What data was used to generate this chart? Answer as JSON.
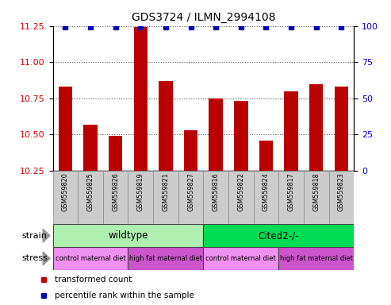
{
  "title": "GDS3724 / ILMN_2994108",
  "samples": [
    "GSM559820",
    "GSM559825",
    "GSM559826",
    "GSM559819",
    "GSM559821",
    "GSM559827",
    "GSM559816",
    "GSM559822",
    "GSM559824",
    "GSM559817",
    "GSM559818",
    "GSM559823"
  ],
  "bar_values": [
    10.83,
    10.57,
    10.49,
    11.24,
    10.87,
    10.53,
    10.75,
    10.73,
    10.46,
    10.8,
    10.85,
    10.83
  ],
  "percentile_values": [
    99,
    99,
    99,
    99,
    99,
    99,
    99,
    99,
    99,
    99,
    99,
    99
  ],
  "ylim_left": [
    10.25,
    11.25
  ],
  "ylim_right": [
    0,
    100
  ],
  "yticks_left": [
    10.25,
    10.5,
    10.75,
    11.0,
    11.25
  ],
  "yticks_right": [
    0,
    25,
    50,
    75,
    100
  ],
  "bar_color": "#bb0000",
  "dot_color": "#0000bb",
  "bar_bottom": 10.25,
  "strain_groups": [
    {
      "label": "wildtype",
      "start": 0,
      "end": 6,
      "color": "#b0f0b0"
    },
    {
      "label": "Cited2-/-",
      "start": 6,
      "end": 12,
      "color": "#00dd55"
    }
  ],
  "stress_groups": [
    {
      "label": "control maternal diet",
      "start": 0,
      "end": 3,
      "color": "#f090f0"
    },
    {
      "label": "high fat maternal diet",
      "start": 3,
      "end": 6,
      "color": "#cc55cc"
    },
    {
      "label": "control maternal diet",
      "start": 6,
      "end": 9,
      "color": "#f090f0"
    },
    {
      "label": "high fat maternal diet",
      "start": 9,
      "end": 12,
      "color": "#cc55cc"
    }
  ],
  "legend_items": [
    {
      "label": "transformed count",
      "color": "#bb0000"
    },
    {
      "label": "percentile rank within the sample",
      "color": "#0000bb"
    }
  ],
  "strain_label": "strain",
  "stress_label": "stress",
  "grid_color": "#888888",
  "bg_color": "#ffffff",
  "tick_label_color_left": "#cc0000",
  "tick_label_color_right": "#0000cc",
  "label_bg_color": "#cccccc",
  "arrow_color": "#999999"
}
